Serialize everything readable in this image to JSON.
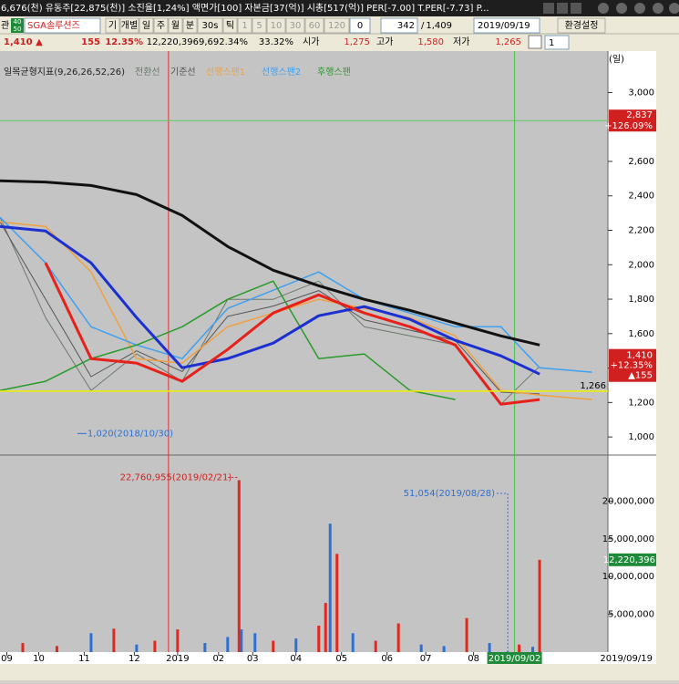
{
  "status_bar": "6,676(천) 유동주[22,875(천)] 소진율[1,24%] 액면가[100] 자본금[37(억)] 시총[517(억)] PER[-7.00] T.PER[-7.73] P...",
  "toolbar": {
    "left_label": "관",
    "tag": [
      "40",
      "50"
    ],
    "stock_name": "SGA솔루션즈",
    "buttons": [
      "기",
      "개별",
      "일",
      "주",
      "월",
      "분",
      "30s",
      "틱",
      "1",
      "5",
      "10",
      "30",
      "60",
      "120"
    ],
    "unit_input": "0",
    "count": "342",
    "separator": "/",
    "total": "1,409",
    "date": "2019/09/19",
    "settings": "환경설정"
  },
  "quote": {
    "price": "1,410 ▲",
    "change": "155",
    "change_rate": "12.35%",
    "volume": "12,220,396",
    "volume_rate": "9,692.34%",
    "turnover": "33.32%",
    "open_label": "시가",
    "open": "1,275",
    "high_label": "고가",
    "high": "1,580",
    "low_label": "저가",
    "low": "1,265",
    "chart_count": "1"
  },
  "chart_data": [
    {
      "type": "line",
      "title": "일목균형지표(9,26,26,52,26)",
      "period_label": "(일)",
      "x": [
        0,
        20,
        40,
        60,
        80,
        100,
        120,
        140,
        160,
        180,
        200,
        220,
        237,
        260
      ],
      "xlim": [
        0,
        267
      ],
      "ylim": [
        900,
        3140
      ],
      "yticks": [
        {
          "value": 1000,
          "label": "1,000"
        },
        {
          "value": 1200,
          "label": "1,200"
        },
        {
          "value": 1400,
          "label": "1,400"
        },
        {
          "value": 1600,
          "label": "1,600"
        },
        {
          "value": 1800,
          "label": "1,800"
        },
        {
          "value": 2000,
          "label": "2,000"
        },
        {
          "value": 2200,
          "label": "2,200"
        },
        {
          "value": 2400,
          "label": "2,400"
        },
        {
          "value": 2600,
          "label": "2,600"
        },
        {
          "value": 2800,
          "label": "2,800"
        },
        {
          "value": 3000,
          "label": "3,000"
        }
      ],
      "series": [
        {
          "name": "전환선",
          "color": "#6b7a6b",
          "line_width": 1,
          "values": [
            2275,
            1693,
            1270,
            1482,
            1323,
            1799,
            1799,
            1905,
            1640,
            1587,
            1534,
            1190,
            1410,
            null
          ]
        },
        {
          "name": "기준선",
          "color": "#555555",
          "line_width": 1,
          "values": [
            2249,
            1800,
            1350,
            1500,
            1380,
            1700,
            1760,
            1850,
            1680,
            1620,
            1560,
            1260,
            1250,
            null
          ]
        },
        {
          "name": "선행스팬1",
          "color": "#f0a040",
          "line_width": 1.5,
          "values": [
            2249,
            2222,
            1958,
            1455,
            1429,
            1640,
            1720,
            1799,
            1746,
            1693,
            1587,
            1270,
            1243,
            1217
          ]
        },
        {
          "name": "선행스팬2",
          "color": "#3fa0f0",
          "line_width": 1.5,
          "values": [
            2275,
            2011,
            1640,
            1534,
            1455,
            1746,
            1852,
            1958,
            1799,
            1720,
            1640,
            1640,
            1402,
            1376
          ]
        },
        {
          "name": "후행스팬",
          "color": "#2a9a2a",
          "line_width": 1.5,
          "values": [
            1270,
            1323,
            1455,
            1534,
            1640,
            1799,
            1905,
            1455,
            1482,
            1270,
            1217,
            null,
            null,
            null
          ]
        },
        {
          "color": "#111111",
          "line_width": 3,
          "values": [
            2487,
            2480,
            2460,
            2407,
            2286,
            2106,
            1968,
            1878,
            1799,
            1735,
            1661,
            1587,
            1534,
            null
          ]
        },
        {
          "color": "#1c2fd0",
          "line_width": 3,
          "values": [
            2222,
            2196,
            2011,
            1693,
            1402,
            1455,
            1545,
            1704,
            1757,
            1683,
            1561,
            1471,
            1365,
            null
          ]
        },
        {
          "color": "#e8201a",
          "line_width": 3,
          "values": [
            null,
            2011,
            1455,
            1429,
            1323,
            1508,
            1720,
            1825,
            1720,
            1640,
            1534,
            1190,
            1217,
            null
          ]
        }
      ],
      "reference_line": {
        "value": 1266,
        "label": "1,266",
        "color": "#f0f000"
      },
      "high_line": {
        "value": 2837,
        "label": "2,837",
        "change": "+126.09%",
        "color": "#5ec85e"
      },
      "last_price": {
        "value": 1410,
        "label": "1,410",
        "change": "+12.35%",
        "diff": "▲155"
      },
      "low_annotation": {
        "x": 34,
        "value": 1020,
        "label": "1,020(2018/10/30)"
      },
      "markers": [
        {
          "x": 74,
          "color": "#e03030"
        },
        {
          "x": 226,
          "color": "#4cc04c"
        }
      ]
    },
    {
      "type": "bar",
      "x": [
        10,
        25,
        40,
        50,
        60,
        68,
        78,
        90,
        100,
        105,
        106,
        112,
        120,
        130,
        140,
        143,
        145,
        148,
        155,
        165,
        175,
        185,
        195,
        205,
        215,
        223,
        228,
        234,
        237
      ],
      "values": [
        1200000,
        800000,
        2500000,
        3100000,
        1000000,
        1500000,
        3000000,
        1200000,
        2000000,
        22760955,
        3000000,
        2500000,
        1500000,
        1800000,
        3500000,
        6500000,
        17000000,
        13000000,
        2500000,
        1500000,
        3800000,
        1000000,
        800000,
        4500000,
        1200000,
        51054,
        1000000,
        700000,
        12220396
      ],
      "colors": [
        "#e0281e",
        "#e0281e",
        "#2f6fd0",
        "#e0281e",
        "#2f6fd0",
        "#e0281e",
        "#e0281e",
        "#2f6fd0",
        "#2f6fd0",
        "#e0281e",
        "#2f6fd0",
        "#2f6fd0",
        "#e0281e",
        "#2f6fd0",
        "#e0281e",
        "#e0281e",
        "#2f6fd0",
        "#e0281e",
        "#2f6fd0",
        "#e0281e",
        "#e0281e",
        "#2f6fd0",
        "#2f6fd0",
        "#e0281e",
        "#2f6fd0",
        "#2f6fd0",
        "#e0281e",
        "#2f6fd0",
        "#e0281e"
      ],
      "xlim": [
        0,
        267
      ],
      "ylim": [
        0,
        25360000
      ],
      "xticks": [
        {
          "value": 3,
          "label": "09"
        },
        {
          "value": 17,
          "label": "10"
        },
        {
          "value": 37,
          "label": "11"
        },
        {
          "value": 59,
          "label": "12"
        },
        {
          "value": 78,
          "label": "2019"
        },
        {
          "value": 96,
          "label": "02"
        },
        {
          "value": 111,
          "label": "03"
        },
        {
          "value": 130,
          "label": "04"
        },
        {
          "value": 150,
          "label": "05"
        },
        {
          "value": 170,
          "label": "06"
        },
        {
          "value": 187,
          "label": "07"
        },
        {
          "value": 208,
          "label": "08"
        },
        {
          "value": 226,
          "label": "2019/09/02"
        }
      ],
      "end_date_label": "2019/09/19",
      "yticks": [
        {
          "value": 5000000,
          "label": "5,000,000"
        },
        {
          "value": 10000000,
          "label": "10,000,000"
        },
        {
          "value": 15000000,
          "label": "15,000,000"
        },
        {
          "value": 20000000,
          "label": "20,000,000"
        }
      ],
      "annotations": [
        {
          "x": 105,
          "value": 22760955,
          "label": "22,760,955(2019/02/21)",
          "color": "#d02020"
        },
        {
          "x": 223,
          "value": 51054,
          "label": "51,054(2019/08/28)",
          "color": "#2f6fd0"
        }
      ],
      "last_volume": {
        "value": 12220396,
        "label": "12,220,396"
      }
    }
  ]
}
